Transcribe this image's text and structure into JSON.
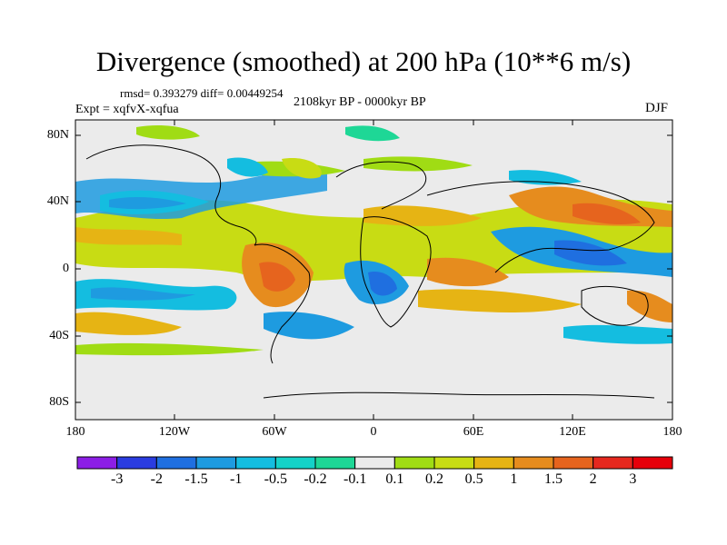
{
  "title": "Divergence (smoothed) at 200 hPa (10**6 m/s)",
  "stats": "rmsd= 0.393279 diff= 0.00449254",
  "experiment": "Expt = xqfvX-xqfua",
  "period": "2108kyr BP - 0000kyr BP",
  "season": "DJF",
  "lat_ticks": [
    "80N",
    "40N",
    "0",
    "40S",
    "80S"
  ],
  "lon_ticks": [
    "180",
    "120W",
    "60W",
    "0",
    "60E",
    "120E",
    "180"
  ],
  "colorbar": {
    "labels": [
      "-3",
      "-2",
      "-1.5",
      "-1",
      "-0.5",
      "-0.2",
      "-0.1",
      "0.1",
      "0.2",
      "0.5",
      "1",
      "1.5",
      "2",
      "3"
    ],
    "colors": [
      "#8c1ee6",
      "#2a3ce0",
      "#1f6fe0",
      "#1e9be0",
      "#14bde0",
      "#14d2c8",
      "#1ed796",
      "#ebebeb",
      "#a0dc14",
      "#c8dc14",
      "#e6b414",
      "#e68c1e",
      "#e6641e",
      "#e6281e",
      "#e6000a"
    ]
  }
}
